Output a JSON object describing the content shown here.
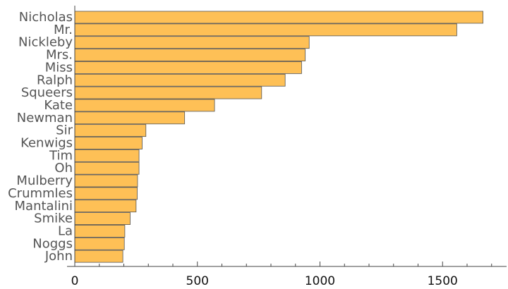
{
  "chart_data": {
    "type": "bar",
    "orientation": "horizontal",
    "title": "",
    "xlabel": "",
    "ylabel": "",
    "categories": [
      "Nicholas",
      "Mr.",
      "Nickleby",
      "Mrs.",
      "Miss",
      "Ralph",
      "Squeers",
      "Kate",
      "Newman",
      "Sir",
      "Kenwigs",
      "Tim",
      "Oh",
      "Mulberry",
      "Crummles",
      "Mantalini",
      "Smike",
      "La",
      "Noggs",
      "John"
    ],
    "values": [
      1665,
      1558,
      956,
      940,
      925,
      858,
      762,
      570,
      448,
      290,
      275,
      262,
      262,
      256,
      255,
      250,
      226,
      204,
      202,
      196
    ],
    "xlim": [
      0,
      1750
    ],
    "xticks": [
      0,
      500,
      1000,
      1500
    ],
    "xtick_labels": [
      "0",
      "500",
      "1000",
      "1500"
    ],
    "minor_tick_step": 100,
    "grid": false,
    "bar_color": "#fec056",
    "bar_edge_color": "#555555"
  }
}
